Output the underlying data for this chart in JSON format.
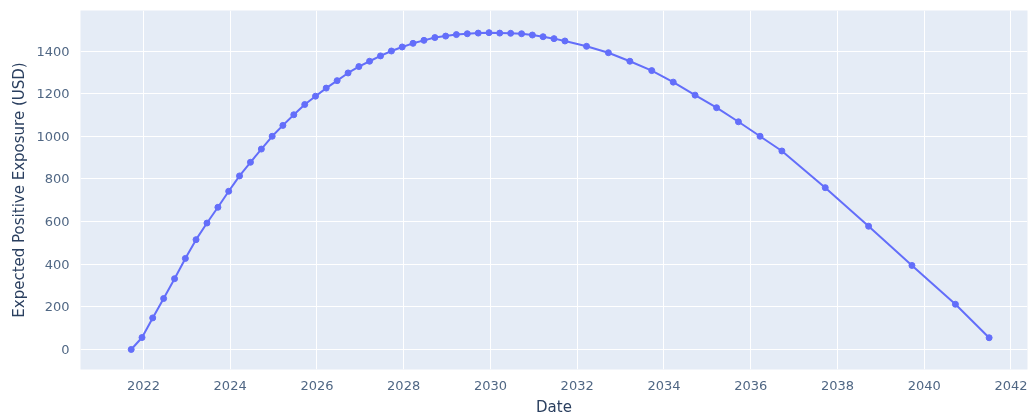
{
  "chart_data": {
    "type": "line",
    "xlabel": "Date",
    "ylabel": "Expected Positive Exposure (USD)",
    "x": [
      "2021-09-20",
      "2021-12-20",
      "2022-03-20",
      "2022-06-20",
      "2022-09-20",
      "2022-12-20",
      "2023-03-20",
      "2023-06-20",
      "2023-09-20",
      "2023-12-20",
      "2024-03-20",
      "2024-06-20",
      "2024-09-20",
      "2024-12-20",
      "2025-03-20",
      "2025-06-20",
      "2025-09-20",
      "2025-12-20",
      "2026-03-20",
      "2026-06-20",
      "2026-09-20",
      "2026-12-20",
      "2027-03-20",
      "2027-06-20",
      "2027-09-20",
      "2027-12-20",
      "2028-03-20",
      "2028-06-20",
      "2028-09-20",
      "2028-12-20",
      "2029-03-20",
      "2029-06-20",
      "2029-09-20",
      "2029-12-20",
      "2030-03-20",
      "2030-06-20",
      "2030-09-20",
      "2030-12-20",
      "2031-03-20",
      "2031-06-20",
      "2031-09-20",
      "2032-03-20",
      "2032-09-20",
      "2033-03-20",
      "2033-09-20",
      "2034-03-20",
      "2034-09-20",
      "2035-03-20",
      "2035-09-20",
      "2036-03-20",
      "2036-09-20",
      "2037-09-20",
      "2038-09-20",
      "2039-09-20",
      "2040-09-20",
      "2041-07-01"
    ],
    "series": [
      {
        "color": "#636efa",
        "values": [
          0,
          56,
          148,
          239,
          332,
          427,
          515,
          593,
          667,
          742,
          814,
          878,
          940,
          1000,
          1051,
          1101,
          1149,
          1188,
          1226,
          1261,
          1297,
          1327,
          1352,
          1377,
          1400,
          1419,
          1436,
          1450,
          1463,
          1470,
          1477,
          1481,
          1484,
          1486,
          1484,
          1483,
          1481,
          1475,
          1467,
          1458,
          1447,
          1422,
          1392,
          1352,
          1308,
          1254,
          1193,
          1134,
          1068,
          1000,
          931,
          759,
          578,
          394,
          212,
          55
        ]
      }
    ],
    "xlim": [
      "2020-07-20",
      "2042-05-20"
    ],
    "ylim": [
      -94,
      1590
    ],
    "xticks": [
      "2022",
      "2024",
      "2026",
      "2028",
      "2030",
      "2032",
      "2034",
      "2036",
      "2038",
      "2040",
      "2042"
    ],
    "yticks": [
      0,
      200,
      400,
      600,
      800,
      1000,
      1200,
      1400
    ],
    "grid": true,
    "marker": "circle",
    "line_style": "solid"
  }
}
